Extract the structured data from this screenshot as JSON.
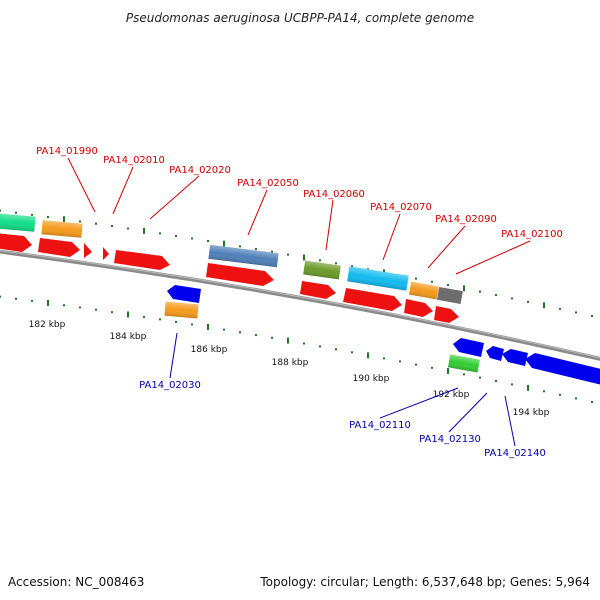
{
  "title": "Pseudomonas aeruginosa UCBPP-PA14, complete genome",
  "footer": {
    "accession": "Accession: NC_008463",
    "topology": "Topology: circular; Length: 6,537,648 bp; Genes: 5,964"
  },
  "colors": {
    "forward_label": "#cc0000",
    "reverse_label": "#0000aa",
    "tick": "#227722",
    "backbone": "#777777",
    "cds": "#ee1111",
    "reverse_cds": "#0000ee",
    "feature_teal": "#11dd88",
    "feature_orange": "#f59a1c",
    "feature_steelblue": "#4f7fb8",
    "feature_olive": "#6b9a2a",
    "feature_cyan": "#11bbee",
    "feature_gray": "#6d6d6d",
    "feature_green": "#33cc33"
  },
  "tick_labels": [
    "182 kbp",
    "184 kbp",
    "186 kbp",
    "188 kbp",
    "190 kbp",
    "192 kbp",
    "194 kbp"
  ],
  "forward_gene_labels": [
    "PA14_01990",
    "PA14_02010",
    "PA14_02020",
    "PA14_02050",
    "PA14_02060",
    "PA14_02070",
    "PA14_02090",
    "PA14_02100"
  ],
  "reverse_gene_labels": [
    "PA14_02030",
    "PA14_02110",
    "PA14_02130",
    "PA14_02140"
  ]
}
